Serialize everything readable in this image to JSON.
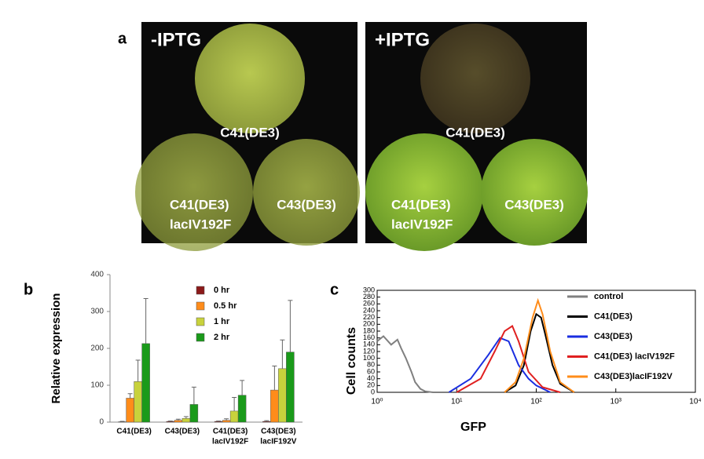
{
  "figure": {
    "panel_a": {
      "label": "a",
      "plates": [
        {
          "title": "-IPTG",
          "top": "C41(DE3)",
          "bottom_left": [
            "C41(DE3)",
            "lacIV192F"
          ],
          "bottom_right": "C43(DE3)"
        },
        {
          "title": "+IPTG",
          "top": "C41(DE3)",
          "bottom_left": [
            "C41(DE3)",
            "lacIV192F"
          ],
          "bottom_right": "C43(DE3)"
        }
      ]
    }
  },
  "chart_data": [
    {
      "type": "bar",
      "panel": "b",
      "ylabel": "Relative expression",
      "categories": [
        [
          "C41(DE3)"
        ],
        [
          "C43(DE3)"
        ],
        [
          "C41(DE3)",
          "lacIV192F"
        ],
        [
          "C43(DE3)",
          "lacIF192V"
        ]
      ],
      "ylim": [
        0,
        400
      ],
      "yticks": [
        0,
        100,
        200,
        300,
        400
      ],
      "series": [
        {
          "name": "0 hr",
          "color": "#8b1a1a",
          "values": [
            1,
            2,
            2,
            2
          ],
          "errors": [
            1,
            1,
            1,
            2
          ]
        },
        {
          "name": "0.5 hr",
          "color": "#ff8c1a",
          "values": [
            65,
            5,
            5,
            87
          ],
          "errors": [
            12,
            3,
            4,
            65
          ]
        },
        {
          "name": "1 hr",
          "color": "#c8d23c",
          "values": [
            110,
            10,
            30,
            145
          ],
          "errors": [
            58,
            5,
            37,
            78
          ]
        },
        {
          "name": "2 hr",
          "color": "#1a9a1a",
          "values": [
            213,
            48,
            73,
            190
          ],
          "errors": [
            122,
            47,
            40,
            140
          ]
        }
      ]
    },
    {
      "type": "line",
      "panel": "c",
      "xlabel": "GFP",
      "ylabel": "Cell counts",
      "xlog": true,
      "xlim": [
        1,
        10000
      ],
      "xticks": [
        {
          "value": 1,
          "label": "10⁰"
        },
        {
          "value": 10,
          "label": "10¹"
        },
        {
          "value": 100,
          "label": "10²"
        },
        {
          "value": 1000,
          "label": "10³"
        },
        {
          "value": 10000,
          "label": "10⁴"
        }
      ],
      "ylim": [
        0,
        300
      ],
      "yticks": [
        0,
        20,
        40,
        60,
        80,
        100,
        120,
        140,
        160,
        180,
        200,
        220,
        240,
        260,
        280,
        300
      ],
      "series": [
        {
          "name": "control",
          "color": "#808080",
          "x": [
            1,
            1.2,
            1.5,
            1.8,
            2,
            2.3,
            2.7,
            3,
            3.5,
            4,
            5
          ],
          "values": [
            150,
            165,
            140,
            155,
            130,
            100,
            60,
            30,
            10,
            3,
            0
          ]
        },
        {
          "name": "C41(DE3)",
          "color": "#000000",
          "x": [
            40,
            55,
            70,
            85,
            100,
            115,
            130,
            160,
            200,
            300
          ],
          "values": [
            0,
            20,
            80,
            180,
            230,
            220,
            170,
            80,
            25,
            0
          ]
        },
        {
          "name": "C43(DE3)",
          "color": "#1a2ee0",
          "x": [
            8,
            15,
            25,
            35,
            45,
            60,
            80,
            100,
            150
          ],
          "values": [
            0,
            40,
            110,
            160,
            150,
            80,
            40,
            20,
            0
          ]
        },
        {
          "name": "C41(DE3) lacIV192F",
          "color": "#e02020",
          "x": [
            10,
            20,
            30,
            40,
            50,
            60,
            80,
            120,
            200
          ],
          "values": [
            0,
            40,
            120,
            180,
            195,
            150,
            60,
            15,
            0
          ]
        },
        {
          "name": "C43(DE3)lacIF192V",
          "color": "#ff8c1a",
          "x": [
            40,
            55,
            70,
            90,
            105,
            120,
            150,
            200,
            300
          ],
          "values": [
            0,
            30,
            100,
            220,
            270,
            230,
            120,
            30,
            0
          ]
        }
      ]
    }
  ]
}
